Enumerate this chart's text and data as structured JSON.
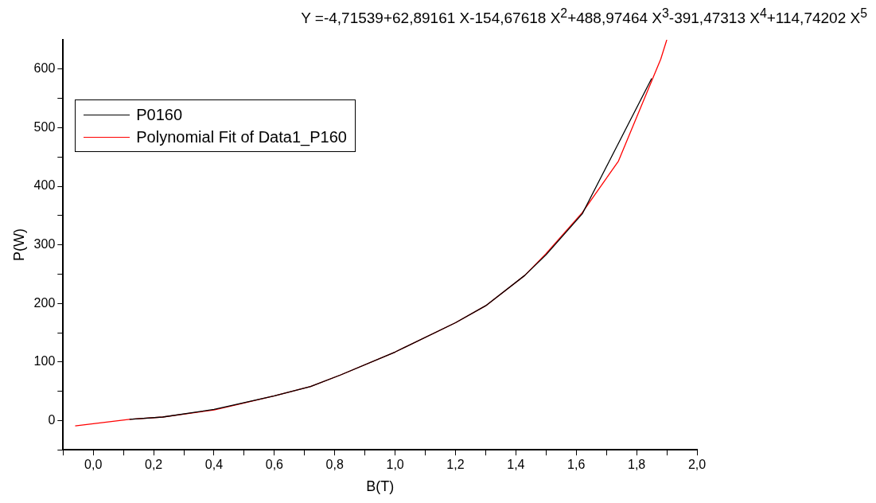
{
  "chart_data": {
    "type": "line",
    "title": "Y =-4,71539+62,89161 X-154,67618 X$^{2}$+488,97464 X$^{3}$-391,47313 X$^{4}$+114,74202 X$^{5}$",
    "xlabel": "B(T)",
    "ylabel": "P(W)",
    "series": [
      {
        "name": "P0160",
        "color": "#000000",
        "x": [
          0.12,
          0.23,
          0.4,
          0.6,
          0.72,
          0.82,
          1.0,
          1.2,
          1.3,
          1.43,
          1.5,
          1.62,
          1.85
        ],
        "values": [
          2,
          6,
          19,
          42,
          58,
          78,
          117,
          167,
          196,
          248,
          283,
          353,
          584
        ]
      },
      {
        "name": "Polynomial Fit of Data1_P160",
        "color": "#ff0000",
        "x": [
          -0.06,
          0.12,
          0.23,
          0.4,
          0.6,
          0.72,
          0.82,
          1.0,
          1.2,
          1.3,
          1.43,
          1.5,
          1.62,
          1.74,
          1.88,
          1.9
        ],
        "values": [
          -9,
          2,
          6,
          18,
          42,
          58,
          78,
          117,
          167,
          196,
          248,
          285,
          355,
          443,
          617,
          650
        ]
      }
    ],
    "xlim": [
      -0.1,
      2.0
    ],
    "ylim": [
      -50,
      650
    ],
    "xticks": [
      {
        "value": -0.1,
        "label": null
      },
      {
        "value": 0,
        "label": "0,0"
      },
      {
        "value": 0.1,
        "label": null
      },
      {
        "value": 0.2,
        "label": "0,2"
      },
      {
        "value": 0.3,
        "label": null
      },
      {
        "value": 0.4,
        "label": "0,4"
      },
      {
        "value": 0.5,
        "label": null
      },
      {
        "value": 0.6,
        "label": "0,6"
      },
      {
        "value": 0.7,
        "label": null
      },
      {
        "value": 0.8,
        "label": "0,8"
      },
      {
        "value": 0.9,
        "label": null
      },
      {
        "value": 1.0,
        "label": "1,0"
      },
      {
        "value": 1.1,
        "label": null
      },
      {
        "value": 1.2,
        "label": "1,2"
      },
      {
        "value": 1.3,
        "label": null
      },
      {
        "value": 1.4,
        "label": "1,4"
      },
      {
        "value": 1.5,
        "label": null
      },
      {
        "value": 1.6,
        "label": "1,6"
      },
      {
        "value": 1.7,
        "label": null
      },
      {
        "value": 1.8,
        "label": "1,8"
      },
      {
        "value": 1.9,
        "label": null
      },
      {
        "value": 2.0,
        "label": "2,0"
      }
    ],
    "yticks": [
      {
        "value": -50,
        "label": null
      },
      0,
      {
        "value": 50,
        "label": null
      },
      100,
      {
        "value": 150,
        "label": null
      },
      200,
      {
        "value": 250,
        "label": null
      },
      300,
      {
        "value": 350,
        "label": null
      },
      400,
      {
        "value": 450,
        "label": null
      },
      500,
      {
        "value": 550,
        "label": null
      },
      600
    ],
    "grid": false,
    "legend": "top left",
    "marker": "none",
    "line_style": "solid"
  }
}
